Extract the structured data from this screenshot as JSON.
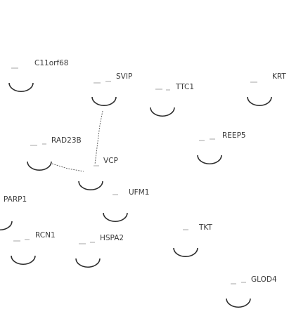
{
  "network": {
    "nodes": [
      {
        "id": "C11orf68",
        "label": "C11orf68"
      },
      {
        "id": "SVIP",
        "label": "SVIP"
      },
      {
        "id": "TTC1",
        "label": "TTC1"
      },
      {
        "id": "KRT",
        "label": "KRT"
      },
      {
        "id": "REEP5",
        "label": "REEP5"
      },
      {
        "id": "RAD23B",
        "label": "RAD23B"
      },
      {
        "id": "VCP",
        "label": "VCP"
      },
      {
        "id": "UFM1",
        "label": "UFM1"
      },
      {
        "id": "PARP1",
        "label": "PARP1"
      },
      {
        "id": "RCN1",
        "label": "RCN1"
      },
      {
        "id": "HSPA2",
        "label": "HSPA2"
      },
      {
        "id": "TKT",
        "label": "TKT"
      },
      {
        "id": "GLOD4",
        "label": "GLOD4"
      }
    ],
    "edges": [
      {
        "source": "RAD23B",
        "target": "VCP"
      },
      {
        "source": "SVIP",
        "target": "VCP"
      }
    ]
  }
}
